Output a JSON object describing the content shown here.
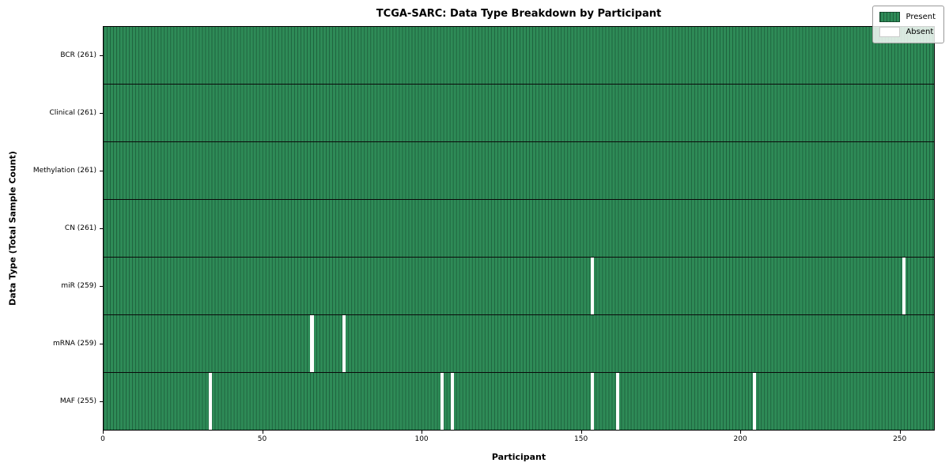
{
  "chart_data": {
    "type": "heatmap",
    "title": "TCGA-SARC: Data Type Breakdown by Participant",
    "xlabel": "Participant",
    "ylabel": "Data Type (Total Sample Count)",
    "n_participants": 261,
    "x_ticks": [
      0,
      50,
      100,
      150,
      200,
      250
    ],
    "legend": {
      "present_label": "Present",
      "absent_label": "Absent"
    },
    "legend_position": "upper right",
    "colors": {
      "present": "#2e8b57",
      "present_edge": "rgba(10,45,28,0.45)",
      "absent": "#ffffff"
    },
    "rows": [
      {
        "label": "BCR (261)",
        "data_type": "BCR",
        "count": 261,
        "absent_indices": []
      },
      {
        "label": "Clinical (261)",
        "data_type": "Clinical",
        "count": 261,
        "absent_indices": []
      },
      {
        "label": "Methylation (261)",
        "data_type": "Methylation",
        "count": 261,
        "absent_indices": []
      },
      {
        "label": "CN (261)",
        "data_type": "CN",
        "count": 261,
        "absent_indices": []
      },
      {
        "label": "miR (259)",
        "data_type": "miR",
        "count": 259,
        "absent_indices": [
          153,
          251
        ]
      },
      {
        "label": "mRNA (259)",
        "data_type": "mRNA",
        "count": 259,
        "absent_indices": [
          65,
          75
        ]
      },
      {
        "label": "MAF (255)",
        "data_type": "MAF",
        "count": 255,
        "absent_indices": [
          33,
          106,
          109,
          153,
          161,
          204
        ]
      }
    ]
  }
}
